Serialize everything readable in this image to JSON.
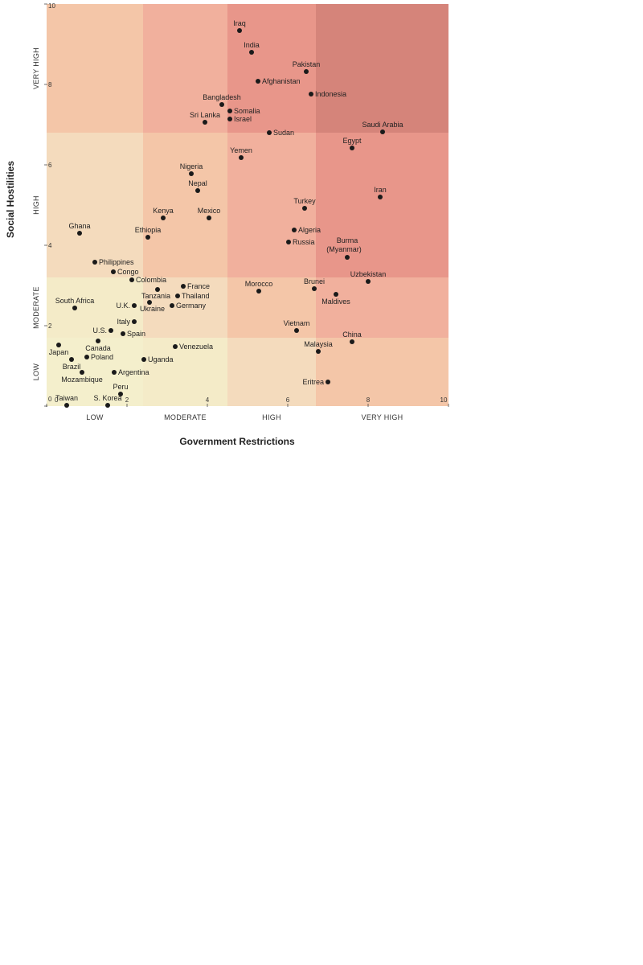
{
  "chart_data": {
    "type": "scatter",
    "xlabel": "Government Restrictions",
    "ylabel": "Social Hostilities",
    "xlim": [
      0,
      10
    ],
    "ylim": [
      0,
      10
    ],
    "x_ticks": [
      "0",
      "2",
      "4",
      "6",
      "8",
      "10"
    ],
    "y_ticks": [
      "0",
      "2",
      "4",
      "6",
      "8",
      "10"
    ],
    "x_bands": [
      {
        "label": "LOW",
        "range": [
          0,
          2.4
        ]
      },
      {
        "label": "MODERATE",
        "range": [
          2.4,
          4.5
        ]
      },
      {
        "label": "HIGH",
        "range": [
          4.5,
          6.7
        ]
      },
      {
        "label": "VERY HIGH",
        "range": [
          6.7,
          10
        ]
      }
    ],
    "y_bands": [
      {
        "label": "LOW",
        "range": [
          0,
          1.7
        ]
      },
      {
        "label": "MODERATE",
        "range": [
          1.7,
          3.2
        ]
      },
      {
        "label": "HIGH",
        "range": [
          3.2,
          6.8
        ]
      },
      {
        "label": "VERY HIGH",
        "range": [
          6.8,
          10
        ]
      }
    ],
    "cell_colors": [
      [
        "#f4efcc",
        "#f4ebc8",
        "#f4dbbd",
        "#f4c6a8"
      ],
      [
        "#f4ebc8",
        "#f4dbbd",
        "#f4c6a8",
        "#f1b09d"
      ],
      [
        "#f4dbbd",
        "#f4c6a8",
        "#f1b09d",
        "#e8968a"
      ],
      [
        "#f4c6a8",
        "#f1b09d",
        "#e8968a",
        "#d5847a"
      ]
    ],
    "points": [
      {
        "name": "Iraq",
        "x": 4.8,
        "y": 9.34,
        "pos": "above"
      },
      {
        "name": "India",
        "x": 5.1,
        "y": 8.8,
        "pos": "above"
      },
      {
        "name": "Pakistan",
        "x": 6.46,
        "y": 8.32,
        "pos": "above"
      },
      {
        "name": "Afghanistan",
        "x": 5.26,
        "y": 8.08,
        "pos": "right"
      },
      {
        "name": "Indonesia",
        "x": 6.58,
        "y": 7.76,
        "pos": "right"
      },
      {
        "name": "Bangladesh",
        "x": 4.36,
        "y": 7.5,
        "pos": "above"
      },
      {
        "name": "Somalia",
        "x": 4.56,
        "y": 7.34,
        "pos": "right"
      },
      {
        "name": "Israel",
        "x": 4.56,
        "y": 7.14,
        "pos": "right"
      },
      {
        "name": "Sri Lanka",
        "x": 3.94,
        "y": 7.06,
        "pos": "above"
      },
      {
        "name": "Sudan",
        "x": 5.54,
        "y": 6.8,
        "pos": "right"
      },
      {
        "name": "Saudi Arabia",
        "x": 8.36,
        "y": 6.82,
        "pos": "above"
      },
      {
        "name": "Egypt",
        "x": 7.6,
        "y": 6.42,
        "pos": "above"
      },
      {
        "name": "Yemen",
        "x": 4.84,
        "y": 6.18,
        "pos": "above"
      },
      {
        "name": "Nigeria",
        "x": 3.6,
        "y": 5.78,
        "pos": "above"
      },
      {
        "name": "Nepal",
        "x": 3.76,
        "y": 5.36,
        "pos": "above"
      },
      {
        "name": "Iran",
        "x": 8.3,
        "y": 5.2,
        "pos": "above"
      },
      {
        "name": "Turkey",
        "x": 6.42,
        "y": 4.92,
        "pos": "above"
      },
      {
        "name": "Kenya",
        "x": 2.9,
        "y": 4.68,
        "pos": "above"
      },
      {
        "name": "Mexico",
        "x": 4.04,
        "y": 4.68,
        "pos": "above"
      },
      {
        "name": "Algeria",
        "x": 6.16,
        "y": 4.38,
        "pos": "right"
      },
      {
        "name": "Ghana",
        "x": 0.82,
        "y": 4.3,
        "pos": "above"
      },
      {
        "name": "Ethiopia",
        "x": 2.52,
        "y": 4.2,
        "pos": "above"
      },
      {
        "name": "Russia",
        "x": 6.02,
        "y": 4.08,
        "pos": "right"
      },
      {
        "name": "Burma (Myanmar)",
        "x": 7.48,
        "y": 3.7,
        "pos": "above2"
      },
      {
        "name": "Philippines",
        "x": 1.2,
        "y": 3.58,
        "pos": "right"
      },
      {
        "name": "Congo",
        "x": 1.66,
        "y": 3.34,
        "pos": "right"
      },
      {
        "name": "Colombia",
        "x": 2.12,
        "y": 3.14,
        "pos": "right"
      },
      {
        "name": "Uzbekistan",
        "x": 8.0,
        "y": 3.1,
        "pos": "above"
      },
      {
        "name": "France",
        "x": 3.4,
        "y": 2.98,
        "pos": "right"
      },
      {
        "name": "Brunei",
        "x": 6.66,
        "y": 2.92,
        "pos": "above"
      },
      {
        "name": "Tanzania",
        "x": 2.76,
        "y": 2.9,
        "pos": "belowc"
      },
      {
        "name": "Morocco",
        "x": 5.28,
        "y": 2.86,
        "pos": "above"
      },
      {
        "name": "Thailand",
        "x": 3.26,
        "y": 2.74,
        "pos": "right"
      },
      {
        "name": "Maldives",
        "x": 7.2,
        "y": 2.78,
        "pos": "below"
      },
      {
        "name": "South Africa",
        "x": 0.7,
        "y": 2.44,
        "pos": "above"
      },
      {
        "name": "U.K.",
        "x": 2.18,
        "y": 2.5,
        "pos": "left"
      },
      {
        "name": "Ukraine",
        "x": 2.56,
        "y": 2.58,
        "pos": "belowl"
      },
      {
        "name": "Germany",
        "x": 3.12,
        "y": 2.5,
        "pos": "right"
      },
      {
        "name": "Italy",
        "x": 2.18,
        "y": 2.1,
        "pos": "left"
      },
      {
        "name": "U.S.",
        "x": 1.6,
        "y": 1.88,
        "pos": "left"
      },
      {
        "name": "Spain",
        "x": 1.9,
        "y": 1.8,
        "pos": "right"
      },
      {
        "name": "Vietnam",
        "x": 6.22,
        "y": 1.88,
        "pos": "above"
      },
      {
        "name": "China",
        "x": 7.6,
        "y": 1.6,
        "pos": "above"
      },
      {
        "name": "Canada",
        "x": 1.28,
        "y": 1.62,
        "pos": "below"
      },
      {
        "name": "Japan",
        "x": 0.3,
        "y": 1.52,
        "pos": "below"
      },
      {
        "name": "Venezuela",
        "x": 3.2,
        "y": 1.48,
        "pos": "right"
      },
      {
        "name": "Malaysia",
        "x": 6.76,
        "y": 1.36,
        "pos": "above"
      },
      {
        "name": "Poland",
        "x": 1.0,
        "y": 1.22,
        "pos": "right"
      },
      {
        "name": "Brazil",
        "x": 0.62,
        "y": 1.16,
        "pos": "below"
      },
      {
        "name": "Uganda",
        "x": 2.42,
        "y": 1.16,
        "pos": "right"
      },
      {
        "name": "Argentina",
        "x": 1.68,
        "y": 0.84,
        "pos": "right"
      },
      {
        "name": "Mozambique",
        "x": 0.88,
        "y": 0.84,
        "pos": "below"
      },
      {
        "name": "Eritrea",
        "x": 7.0,
        "y": 0.6,
        "pos": "left"
      },
      {
        "name": "Peru",
        "x": 1.84,
        "y": 0.3,
        "pos": "above"
      },
      {
        "name": "Taiwan",
        "x": 0.5,
        "y": 0.02,
        "pos": "above"
      },
      {
        "name": "S. Korea",
        "x": 1.52,
        "y": 0.02,
        "pos": "above"
      }
    ]
  }
}
